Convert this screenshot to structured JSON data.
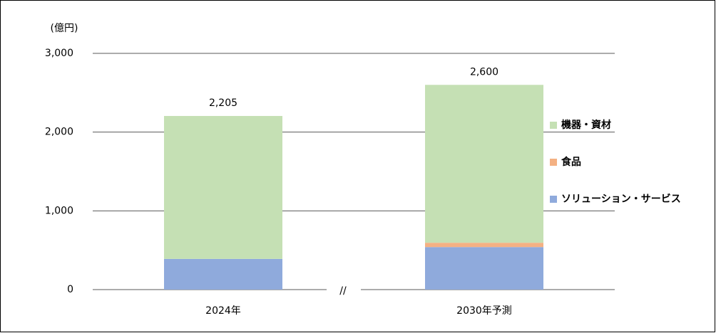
{
  "chart_data": {
    "type": "stacked_bar",
    "y_unit_label": "(億円)",
    "axis_break_label": "//",
    "categories": [
      "2024年",
      "2030年予測"
    ],
    "series": [
      {
        "name": "ソリューション・サービス",
        "color": "#8faadc",
        "values": [
          390,
          540
        ]
      },
      {
        "name": "食品",
        "color": "#f4b183",
        "values": [
          0,
          55
        ]
      },
      {
        "name": "機器・資材",
        "color": "#c5e0b4",
        "values": [
          1815,
          2005
        ]
      }
    ],
    "totals": [
      2205,
      2600
    ],
    "total_labels": [
      "2,205",
      "2,600"
    ],
    "ylim": [
      0,
      3000
    ],
    "yticks": [
      0,
      {
        "value": 1000,
        "label": "1,000"
      },
      {
        "value": 2000,
        "label": "2,000"
      },
      {
        "value": 3000,
        "label": "3,000"
      }
    ],
    "grid": true,
    "legend": "right"
  }
}
